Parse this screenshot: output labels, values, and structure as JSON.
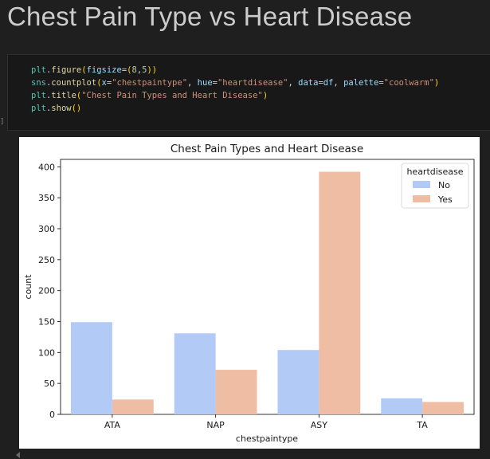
{
  "page": {
    "heading": "Chest Pain Type vs Heart Disease",
    "exec_marker": "]"
  },
  "code": {
    "lines": [
      [
        [
          "plt",
          "id"
        ],
        [
          ".",
          "p0"
        ],
        [
          "figure",
          "fn"
        ],
        [
          "(",
          "p"
        ],
        [
          "figsize",
          "kw"
        ],
        [
          "=",
          "p0"
        ],
        [
          "(",
          "p"
        ],
        [
          "8",
          "num"
        ],
        [
          ",",
          "p0"
        ],
        [
          "5",
          "num"
        ],
        [
          "))",
          "p"
        ]
      ],
      [
        [
          "sns",
          "id"
        ],
        [
          ".",
          "p0"
        ],
        [
          "countplot",
          "fn"
        ],
        [
          "(",
          "p"
        ],
        [
          "x",
          "kw"
        ],
        [
          "=",
          "p0"
        ],
        [
          "\"chestpaintype\"",
          "str"
        ],
        [
          ", ",
          "p0"
        ],
        [
          "hue",
          "kw"
        ],
        [
          "=",
          "p0"
        ],
        [
          "\"heartdisease\"",
          "str"
        ],
        [
          ", ",
          "p0"
        ],
        [
          "data",
          "kw"
        ],
        [
          "=",
          "p0"
        ],
        [
          "df",
          "kw"
        ],
        [
          ", ",
          "p0"
        ],
        [
          "palette",
          "kw"
        ],
        [
          "=",
          "p0"
        ],
        [
          "\"coolwarm\"",
          "str"
        ],
        [
          ")",
          "p"
        ]
      ],
      [
        [
          "plt",
          "id"
        ],
        [
          ".",
          "p0"
        ],
        [
          "title",
          "fn"
        ],
        [
          "(",
          "p"
        ],
        [
          "\"Chest Pain Types and Heart Disease\"",
          "str"
        ],
        [
          ")",
          "p"
        ]
      ],
      [
        [
          "plt",
          "id"
        ],
        [
          ".",
          "p0"
        ],
        [
          "show",
          "fn"
        ],
        [
          "()",
          "p"
        ]
      ]
    ]
  },
  "colors": {
    "no": "#b2cbf6",
    "yes": "#efbca4"
  },
  "chart_data": {
    "type": "bar",
    "title": "Chest Pain Types and Heart Disease",
    "xlabel": "chestpaintype",
    "ylabel": "count",
    "categories": [
      "ATA",
      "NAP",
      "ASY",
      "TA"
    ],
    "series": [
      {
        "name": "No",
        "values": [
          149,
          131,
          104,
          26
        ]
      },
      {
        "name": "Yes",
        "values": [
          24,
          72,
          392,
          20
        ]
      }
    ],
    "ylim": [
      0,
      412
    ],
    "yticks": [
      0,
      50,
      100,
      150,
      200,
      250,
      300,
      350,
      400
    ],
    "legend": {
      "title": "heartdisease",
      "placement": "top-right"
    },
    "grid": false
  }
}
